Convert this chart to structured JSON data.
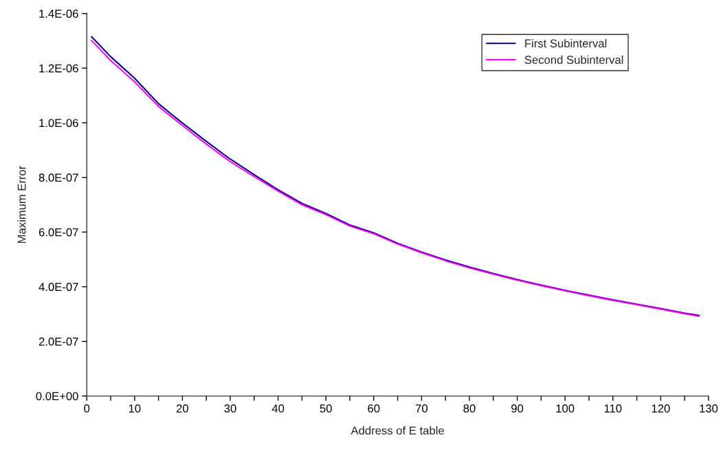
{
  "chart_data": {
    "type": "line",
    "xlabel": "Address of E table",
    "ylabel": "Maximum Error",
    "x": [
      1,
      5,
      10,
      15,
      20,
      25,
      30,
      35,
      40,
      45,
      50,
      55,
      60,
      65,
      70,
      75,
      80,
      85,
      90,
      95,
      100,
      105,
      110,
      115,
      120,
      125,
      128
    ],
    "series": [
      {
        "name": "First Subinterval",
        "color": "#000080",
        "values": [
          1.315e-06,
          1.242e-06,
          1.163e-06,
          1.07e-06,
          9.99e-07,
          9.32e-07,
          8.67e-07,
          8.1e-07,
          7.55e-07,
          7.05e-07,
          6.68e-07,
          6.26e-07,
          5.97e-07,
          5.59e-07,
          5.27e-07,
          4.98e-07,
          4.72e-07,
          4.48e-07,
          4.26e-07,
          4.06e-07,
          3.87e-07,
          3.69e-07,
          3.52e-07,
          3.36e-07,
          3.2e-07,
          3.03e-07,
          2.95e-07
        ]
      },
      {
        "name": "Second Subinterval",
        "color": "#ff00ff",
        "values": [
          1.301e-06,
          1.228e-06,
          1.15e-06,
          1.06e-06,
          9.9e-07,
          9.22e-07,
          8.58e-07,
          8.03e-07,
          7.5e-07,
          7e-07,
          6.64e-07,
          6.22e-07,
          5.94e-07,
          5.56e-07,
          5.24e-07,
          4.95e-07,
          4.69e-07,
          4.46e-07,
          4.24e-07,
          4.04e-07,
          3.85e-07,
          3.67e-07,
          3.5e-07,
          3.34e-07,
          3.18e-07,
          3.01e-07,
          2.92e-07
        ]
      }
    ],
    "xlim": [
      0,
      130
    ],
    "xticks": [
      0,
      {
        "value": 5,
        "label": null
      },
      10,
      {
        "value": 15,
        "label": null
      },
      20,
      {
        "value": 25,
        "label": null
      },
      30,
      {
        "value": 35,
        "label": null
      },
      40,
      {
        "value": 45,
        "label": null
      },
      50,
      {
        "value": 55,
        "label": null
      },
      60,
      {
        "value": 65,
        "label": null
      },
      70,
      {
        "value": 75,
        "label": null
      },
      80,
      {
        "value": 85,
        "label": null
      },
      90,
      {
        "value": 95,
        "label": null
      },
      100,
      {
        "value": 105,
        "label": null
      },
      110,
      {
        "value": 115,
        "label": null
      },
      120,
      {
        "value": 125,
        "label": null
      },
      130
    ],
    "ylim": [
      0,
      1.4e-06
    ],
    "yticks": [
      {
        "value": 0,
        "label": "0.0E+00"
      },
      {
        "value": 2e-07,
        "label": "2.0E-07"
      },
      {
        "value": 4e-07,
        "label": "4.0E-07"
      },
      {
        "value": 6e-07,
        "label": "6.0E-07"
      },
      {
        "value": 8e-07,
        "label": "8.0E-07"
      },
      {
        "value": 1e-06,
        "label": "1.0E-06"
      },
      {
        "value": 1.2e-06,
        "label": "1.2E-06"
      },
      {
        "value": 1.4e-06,
        "label": "1.4E-06"
      }
    ],
    "grid": false,
    "legend": "top right",
    "line_style": "solid"
  }
}
